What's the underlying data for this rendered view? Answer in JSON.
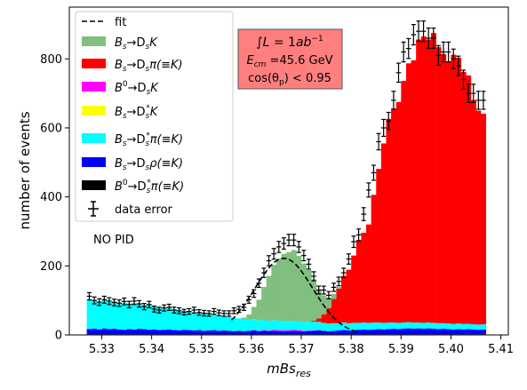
{
  "chart_data": {
    "type": "bar",
    "xlabel": "mBs_res",
    "ylabel": "number of events",
    "xlim": [
      5.3235,
      5.4115
    ],
    "ylim": [
      0,
      950
    ],
    "xticks": [
      5.33,
      5.34,
      5.35,
      5.36,
      5.37,
      5.38,
      5.39,
      5.4,
      5.41
    ],
    "xtick_labels": [
      "5.33",
      "5.34",
      "5.35",
      "5.36",
      "5.37",
      "5.38",
      "5.39",
      "5.40",
      "5.41"
    ],
    "yticks": [
      0,
      200,
      400,
      600,
      800
    ],
    "ytick_labels": [
      "0",
      "200",
      "400",
      "600",
      "800"
    ],
    "bin_start": 5.327,
    "bin_width": 0.001,
    "colors": {
      "fit": "#000000",
      "bs_dsk": "#80bf80",
      "bs_dspi": "#ff0000",
      "b0_dsk": "#ff00ff",
      "bs_dsstark": "#ffff00",
      "bs_dsstarpi": "#00ffff",
      "bs_dsrho": "#0000ff",
      "b0_dsstarpi": "#000000",
      "data": "#000000"
    },
    "legend": {
      "placement": "upper left",
      "entries": [
        {
          "key": "fit",
          "label": "fit",
          "style": "dashed-line"
        },
        {
          "key": "bs_dsk",
          "label_main": "B",
          "label_sub": "s",
          "label_rest": "→D",
          "label_sub2": "s",
          "label_tail": "K",
          "style": "patch"
        },
        {
          "key": "bs_dspi",
          "label_main": "B",
          "label_sub": "s",
          "label_rest": "→D",
          "label_sub2": "s",
          "label_tail": "π(≡K)",
          "style": "patch"
        },
        {
          "key": "b0_dsk",
          "label_main": "B",
          "label_sup": "0",
          "label_rest": "→D",
          "label_sub2": "s",
          "label_tail": "K",
          "style": "patch"
        },
        {
          "key": "bs_dsstark",
          "label_main": "B",
          "label_sub": "s",
          "label_rest": "→D",
          "label_sub2": "s",
          "label_sup2": "*",
          "label_tail": "K",
          "style": "patch"
        },
        {
          "key": "bs_dsstarpi",
          "label_main": "B",
          "label_sub": "s",
          "label_rest": "→D",
          "label_sub2": "s",
          "label_sup2": "*",
          "label_tail": "π(≡K)",
          "style": "patch"
        },
        {
          "key": "bs_dsrho",
          "label_main": "B",
          "label_sub": "s",
          "label_rest": "→D",
          "label_sub2": "s",
          "label_tail": "ρ(≡K)",
          "style": "patch"
        },
        {
          "key": "b0_dsstarpi",
          "label_main": "B",
          "label_sup": "0",
          "label_rest": "→D",
          "label_sub2": "s",
          "label_sup2": "*",
          "label_tail": "π(≡K)",
          "style": "patch"
        },
        {
          "key": "data",
          "label": "data error",
          "style": "errorbar"
        }
      ]
    },
    "annotation_box": {
      "line1": "∫L = 1ab⁻¹",
      "line2": "E_cm =45.6 GeV",
      "line3": "cos(θ_p) < 0.95",
      "line1_main": "∫",
      "line1_var": "L",
      "line1_mid": " = 1",
      "line1_unit": "ab",
      "line1_sup": "−1",
      "line2_var": "E",
      "line2_sub": "cm",
      "line2_rest": " =45.6 GeV",
      "line3_pre": "cos(θ",
      "line3_sub": "p",
      "line3_post": ") < 0.95",
      "facecolor": "#ff7f7f"
    },
    "text_annotation": "NO PID",
    "series": [
      {
        "key": "b0_dsstarpi",
        "values": [
          2,
          2,
          2,
          2,
          2,
          2,
          2,
          2,
          2,
          2,
          2,
          2,
          2,
          2,
          2,
          2,
          2,
          2,
          2,
          2,
          2,
          2,
          2,
          2,
          2,
          2,
          2,
          2,
          2,
          2,
          2,
          2,
          2,
          2,
          2,
          2,
          2,
          2,
          2,
          2,
          2,
          2,
          2,
          2,
          2,
          2,
          2,
          2,
          2,
          2,
          2,
          2,
          2,
          2,
          2,
          2,
          2,
          2,
          2,
          2,
          2,
          2,
          2,
          2,
          2,
          2,
          2,
          2,
          2,
          2,
          2,
          2,
          2,
          2,
          2,
          2,
          2,
          2,
          2,
          2
        ]
      },
      {
        "key": "bs_dsrho",
        "values": [
          15,
          16,
          14,
          17,
          15,
          16,
          14,
          13,
          15,
          14,
          16,
          15,
          13,
          14,
          12,
          13,
          14,
          12,
          11,
          13,
          12,
          11,
          12,
          10,
          11,
          12,
          10,
          11,
          10,
          9,
          10,
          9,
          10,
          11,
          9,
          10,
          9,
          10,
          9,
          8,
          9,
          10,
          9,
          8,
          9,
          10,
          11,
          10,
          9,
          10,
          11,
          12,
          11,
          12,
          13,
          14,
          13,
          14,
          15,
          14,
          15,
          16,
          15,
          16,
          17,
          16,
          17,
          16,
          17,
          16,
          15,
          16,
          15,
          14,
          15,
          14,
          15,
          14,
          13,
          14
        ]
      },
      {
        "key": "bs_dsstark",
        "values": [
          0,
          0,
          0,
          0,
          0,
          0,
          0,
          0,
          0,
          0,
          0,
          0,
          0,
          0,
          0,
          0,
          0,
          0,
          0,
          0,
          0,
          0,
          0,
          0,
          0,
          0,
          0,
          0,
          0,
          0,
          0,
          0,
          0,
          0,
          0,
          0,
          0,
          0,
          0,
          0,
          0,
          0,
          0,
          0,
          0,
          0,
          0,
          0,
          0,
          0,
          0,
          0,
          0,
          0,
          0,
          0,
          0,
          0,
          0,
          0,
          0,
          0,
          0,
          0,
          0,
          0,
          0,
          0,
          0,
          0,
          0,
          0,
          0,
          0,
          0,
          0,
          0,
          0,
          0,
          0
        ]
      },
      {
        "key": "b0_dsk",
        "values": [
          0,
          0,
          0,
          0,
          0,
          0,
          0,
          0,
          0,
          0,
          0,
          0,
          0,
          0,
          0,
          0,
          0,
          0,
          0,
          0,
          0,
          0,
          0,
          0,
          0,
          0,
          0,
          0,
          0,
          0,
          0,
          0,
          0,
          1,
          1,
          2,
          2,
          3,
          3,
          3,
          3,
          3,
          3,
          2,
          2,
          1,
          1,
          0,
          0,
          0,
          0,
          0,
          0,
          0,
          0,
          0,
          0,
          0,
          0,
          0,
          0,
          0,
          0,
          0,
          0,
          0,
          0,
          0,
          0,
          0,
          0,
          0,
          0,
          0,
          0,
          0,
          0,
          0,
          0,
          0
        ]
      },
      {
        "key": "bs_dsstarpi",
        "values": [
          85,
          82,
          80,
          84,
          78,
          80,
          76,
          78,
          74,
          76,
          72,
          70,
          72,
          68,
          66,
          60,
          62,
          58,
          56,
          55,
          54,
          52,
          50,
          50,
          48,
          46,
          44,
          42,
          40,
          38,
          36,
          34,
          32,
          32,
          30,
          30,
          28,
          28,
          27,
          27,
          26,
          26,
          25,
          25,
          25,
          25,
          24,
          23,
          22,
          22,
          21,
          22,
          21,
          21,
          20,
          20,
          20,
          20,
          19,
          19,
          19,
          18,
          18,
          18,
          18,
          18,
          17,
          17,
          17,
          17,
          17,
          16,
          16,
          16,
          16,
          16,
          15,
          15,
          15,
          15
        ]
      },
      {
        "key": "bs_dspi",
        "values": [
          0,
          0,
          0,
          0,
          0,
          0,
          0,
          0,
          0,
          0,
          0,
          0,
          0,
          0,
          0,
          0,
          0,
          0,
          0,
          0,
          0,
          0,
          0,
          0,
          0,
          0,
          0,
          0,
          0,
          0,
          0,
          0,
          0,
          0,
          0,
          0,
          0,
          0,
          0,
          0,
          0,
          0,
          0,
          0,
          0,
          3,
          10,
          25,
          45,
          70,
          100,
          135,
          155,
          195,
          240,
          260,
          285,
          370,
          445,
          520,
          590,
          620,
          640,
          700,
          750,
          760,
          820,
          830,
          820,
          840,
          800,
          780,
          760,
          780,
          770,
          730,
          720,
          650,
          620,
          610
        ]
      },
      {
        "key": "bs_dsk",
        "values": [
          0,
          0,
          0,
          0,
          0,
          0,
          0,
          0,
          0,
          0,
          0,
          0,
          0,
          0,
          0,
          0,
          0,
          0,
          0,
          0,
          0,
          0,
          0,
          0,
          0,
          0,
          0,
          0,
          0,
          0,
          0,
          5,
          15,
          35,
          60,
          95,
          130,
          160,
          180,
          195,
          200,
          205,
          190,
          170,
          150,
          120,
          80,
          55,
          30,
          15,
          5,
          0,
          0,
          0,
          0,
          0,
          0,
          0,
          0,
          0,
          0,
          0,
          0,
          0,
          0,
          0,
          0,
          0,
          0,
          0,
          0,
          0,
          0,
          0,
          0,
          0,
          0,
          0,
          0,
          0
        ]
      }
    ],
    "data_points": [
      112,
      100,
      95,
      102,
      98,
      94,
      92,
      97,
      88,
      98,
      90,
      82,
      88,
      75,
      72,
      78,
      80,
      72,
      70,
      66,
      68,
      72,
      65,
      63,
      62,
      68,
      64,
      62,
      62,
      70,
      74,
      80,
      102,
      120,
      150,
      180,
      215,
      235,
      255,
      265,
      275,
      275,
      255,
      230,
      205,
      170,
      130,
      130,
      115,
      138,
      155,
      180,
      220,
      270,
      290,
      350,
      420,
      470,
      560,
      600,
      620,
      680,
      760,
      820,
      830,
      870,
      880,
      880,
      860,
      860,
      810,
      820,
      820,
      800,
      780,
      740,
      700,
      700,
      680,
      680
    ],
    "fit_curve": {
      "mu": 5.3665,
      "sigma": 0.0058,
      "amplitude": 222,
      "xrange": [
        5.356,
        5.3815
      ]
    }
  }
}
